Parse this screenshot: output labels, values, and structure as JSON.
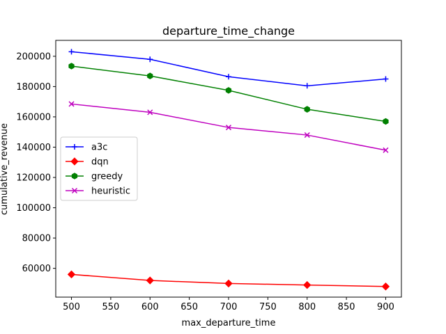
{
  "chart_data": {
    "type": "line",
    "title": "departure_time_change",
    "xlabel": "max_departure_time",
    "ylabel": "cumulative_revenue",
    "x": [
      500,
      600,
      700,
      800,
      900
    ],
    "xlim": [
      480,
      920
    ],
    "ylim": [
      41000,
      210500
    ],
    "xticks": [
      500,
      550,
      600,
      650,
      700,
      750,
      800,
      850,
      900
    ],
    "yticks": [
      60000,
      80000,
      100000,
      120000,
      140000,
      160000,
      180000,
      200000
    ],
    "grid": false,
    "legend_position": "center-left",
    "series": [
      {
        "name": "a3c",
        "color": "#0000ff",
        "marker": "plus",
        "values": [
          203000,
          198000,
          186500,
          180500,
          185000
        ]
      },
      {
        "name": "dqn",
        "color": "#ff0000",
        "marker": "diamond",
        "values": [
          56000,
          52000,
          50000,
          49000,
          48000
        ]
      },
      {
        "name": "greedy",
        "color": "#008000",
        "marker": "hexagon",
        "values": [
          193500,
          187000,
          177500,
          165000,
          157000
        ]
      },
      {
        "name": "heuristic",
        "color": "#bf00bf",
        "marker": "x",
        "values": [
          168500,
          163000,
          153000,
          148000,
          138000
        ]
      }
    ]
  }
}
